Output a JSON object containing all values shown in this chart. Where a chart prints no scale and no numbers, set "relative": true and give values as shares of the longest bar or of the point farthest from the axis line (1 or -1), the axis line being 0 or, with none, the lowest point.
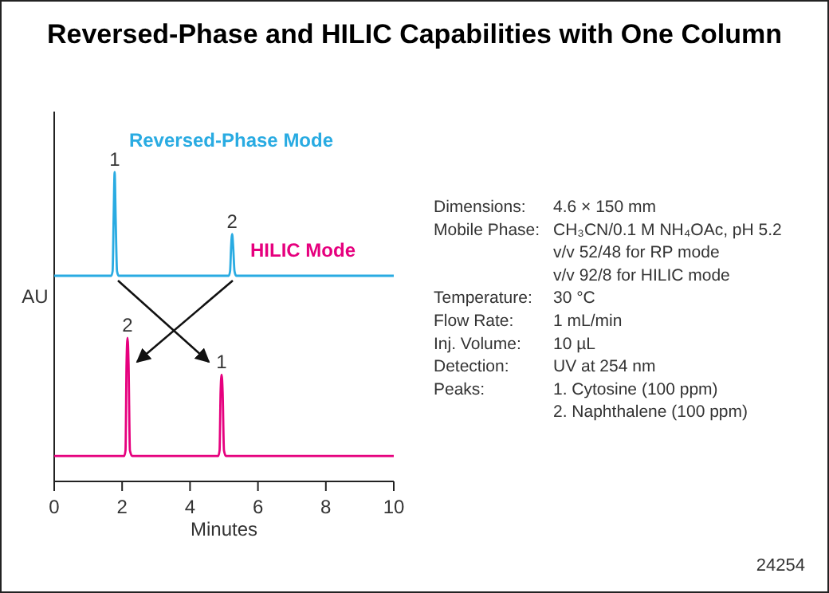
{
  "chart_data": {
    "type": "line",
    "title": "Reversed-Phase and HILIC Capabilities with One Column",
    "xlabel": "Minutes",
    "ylabel": "AU",
    "relative": true,
    "xlim": [
      0,
      10
    ],
    "xticks": [
      0,
      2,
      4,
      6,
      8,
      10
    ],
    "grid": false,
    "legend": false,
    "marker": "none",
    "line_style": "solid",
    "series": [
      {
        "name": "Reversed-Phase Mode",
        "color": "#29abe2",
        "x": [
          0,
          1.68,
          1.72,
          1.75,
          1.78,
          1.81,
          1.85,
          1.9,
          5.14,
          5.18,
          5.21,
          5.24,
          5.27,
          5.31,
          5.36,
          10
        ],
        "values": [
          0.665,
          0.665,
          0.68,
          0.85,
          1,
          0.85,
          0.68,
          0.665,
          0.665,
          0.68,
          0.76,
          0.8,
          0.76,
          0.68,
          0.665,
          0.665
        ]
      },
      {
        "name": "HILIC Mode",
        "color": "#e6007e",
        "x": [
          0,
          2.06,
          2.1,
          2.13,
          2.16,
          2.19,
          2.23,
          2.3,
          4.83,
          4.87,
          4.9,
          4.93,
          4.96,
          5.0,
          5.06,
          10
        ],
        "values": [
          0.082,
          0.082,
          0.1,
          0.38,
          0.464,
          0.38,
          0.1,
          0.082,
          0.082,
          0.1,
          0.29,
          0.345,
          0.29,
          0.1,
          0.082,
          0.082
        ]
      }
    ],
    "annotations": [
      {
        "text": "1",
        "x": 1.78,
        "y": 1
      },
      {
        "text": "2",
        "x": 5.24,
        "y": 0.8
      },
      {
        "text": "2",
        "x": 2.16,
        "y": 0.464
      },
      {
        "text": "1",
        "x": 4.93,
        "y": 0.345
      },
      "Dimensions: 4.6 × 150 mm",
      "Mobile Phase: CH₃CN/0.1 M NH₄OAc, pH 5.2",
      "v/v 52/48 for RP mode",
      "v/v 92/8 for HILIC mode",
      "Temperature: 30 °C",
      "Flow Rate: 1 mL/min",
      "Inj. Volume: 10 µL",
      "Detection: UV at 254 nm",
      "Peaks: 1. Cytosine (100 ppm)",
      "2. Naphthalene (100 ppm)",
      "24254"
    ]
  }
}
